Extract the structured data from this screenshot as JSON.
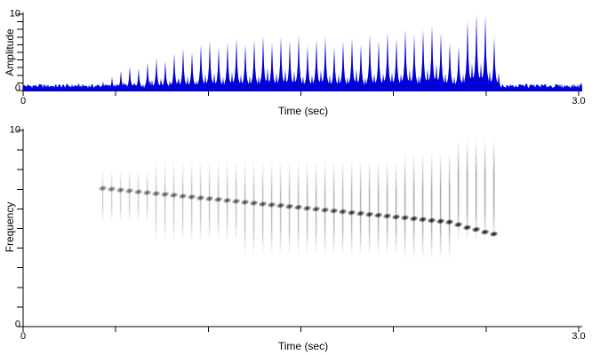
{
  "figure": {
    "background": "#ffffff",
    "axis_color": "#000000",
    "waveform_color": "#0000d8"
  },
  "chart_data": [
    {
      "type": "area",
      "name": "oscillogram",
      "title": "",
      "xlabel": "Time (sec)",
      "ylabel": "Amplitude",
      "xlim": [
        0,
        3.0
      ],
      "ylim": [
        0,
        10
      ],
      "x_tick_interval": 0.5,
      "y_tick_interval": 1,
      "x_tick_labels": {
        "min": "0",
        "max": "3.0"
      },
      "y_tick_labels": {
        "min": "0",
        "max": "10"
      },
      "grid": "off",
      "noise_floor": 0.8,
      "pulse_t": [
        0.43,
        0.478,
        0.526,
        0.574,
        0.622,
        0.67,
        0.718,
        0.766,
        0.814,
        0.862,
        0.91,
        0.958,
        1.006,
        1.054,
        1.102,
        1.15,
        1.198,
        1.246,
        1.294,
        1.342,
        1.39,
        1.438,
        1.486,
        1.534,
        1.582,
        1.63,
        1.678,
        1.726,
        1.774,
        1.822,
        1.87,
        1.918,
        1.966,
        2.014,
        2.062,
        2.11,
        2.158,
        2.206,
        2.254,
        2.302,
        2.35,
        2.398,
        2.446,
        2.494,
        2.542
      ],
      "pulse_amp": [
        1.3,
        1.9,
        2.7,
        3.3,
        3.0,
        3.8,
        4.4,
        4.0,
        5.0,
        5.6,
        5.2,
        6.2,
        6.6,
        5.8,
        6.4,
        7.0,
        6.2,
        6.8,
        7.3,
        6.4,
        7.1,
        6.6,
        7.4,
        6.0,
        6.8,
        7.2,
        5.8,
        6.6,
        7.0,
        6.2,
        7.4,
        6.7,
        7.8,
        7.0,
        8.2,
        7.4,
        8.1,
        8.7,
        7.7,
        6.4,
        5.9,
        9.3,
        10.2,
        10.0,
        7.1
      ]
    },
    {
      "type": "heatmap",
      "name": "spectrogram",
      "title": "",
      "xlabel": "Time (sec)",
      "ylabel": "Frequency",
      "xlim": [
        0,
        3.0
      ],
      "ylim": [
        0,
        10
      ],
      "x_tick_interval": 0.5,
      "y_tick_interval": 1,
      "x_tick_labels": {
        "min": "0",
        "max": "3.0"
      },
      "y_tick_labels": {
        "min": "0",
        "max": "10"
      },
      "grid": "off",
      "pulse_t": [
        0.43,
        0.478,
        0.526,
        0.574,
        0.622,
        0.67,
        0.718,
        0.766,
        0.814,
        0.862,
        0.91,
        0.958,
        1.006,
        1.054,
        1.102,
        1.15,
        1.198,
        1.246,
        1.294,
        1.342,
        1.39,
        1.438,
        1.486,
        1.534,
        1.582,
        1.63,
        1.678,
        1.726,
        1.774,
        1.822,
        1.87,
        1.918,
        1.966,
        2.014,
        2.062,
        2.11,
        2.158,
        2.206,
        2.254,
        2.302,
        2.35,
        2.398,
        2.446,
        2.494,
        2.542
      ],
      "pulse_freq": [
        7.05,
        7.01,
        6.96,
        6.92,
        6.87,
        6.83,
        6.78,
        6.74,
        6.7,
        6.65,
        6.61,
        6.56,
        6.52,
        6.48,
        6.43,
        6.39,
        6.34,
        6.3,
        6.25,
        6.21,
        6.17,
        6.12,
        6.08,
        6.03,
        5.99,
        5.94,
        5.9,
        5.86,
        5.81,
        5.77,
        5.72,
        5.68,
        5.64,
        5.59,
        5.55,
        5.5,
        5.46,
        5.41,
        5.37,
        5.33,
        5.2,
        5.05,
        4.95,
        4.82,
        4.72
      ],
      "pulse_intensity": [
        0.35,
        0.37,
        0.38,
        0.4,
        0.41,
        0.43,
        0.45,
        0.46,
        0.48,
        0.49,
        0.51,
        0.53,
        0.54,
        0.56,
        0.57,
        0.59,
        0.61,
        0.62,
        0.64,
        0.65,
        0.67,
        0.69,
        0.7,
        0.72,
        0.73,
        0.75,
        0.77,
        0.78,
        0.8,
        0.81,
        0.83,
        0.85,
        0.86,
        0.88,
        0.89,
        0.91,
        0.93,
        0.94,
        0.96,
        0.97,
        0.99,
        1.0,
        1.0,
        1.0,
        1.0
      ],
      "streak_top_freq": [
        8.0,
        8.0,
        8.0,
        8.0,
        8.0,
        8.0,
        8.5,
        8.5,
        8.5,
        8.5,
        8.5,
        8.5,
        8.5,
        8.5,
        8.5,
        8.5,
        8.5,
        8.5,
        8.5,
        8.5,
        8.5,
        8.5,
        8.5,
        8.5,
        8.5,
        8.5,
        8.5,
        8.5,
        8.5,
        8.5,
        8.5,
        8.5,
        8.5,
        8.5,
        8.9,
        8.9,
        8.9,
        8.9,
        8.9,
        8.9,
        9.6,
        9.6,
        9.6,
        9.6,
        9.6
      ],
      "streak_bottom_freq": [
        5.3,
        5.3,
        5.3,
        5.3,
        5.3,
        5.3,
        4.3,
        4.3,
        4.3,
        4.3,
        4.3,
        4.3,
        4.3,
        4.3,
        4.3,
        4.3,
        3.6,
        3.6,
        3.6,
        3.6,
        3.6,
        3.6,
        3.6,
        3.6,
        3.6,
        3.6,
        3.6,
        3.6,
        3.6,
        3.6,
        3.6,
        3.6,
        3.6,
        3.6,
        3.4,
        3.4,
        3.4,
        3.4,
        3.4,
        3.4,
        4.3,
        4.3,
        4.3,
        4.3,
        4.3
      ]
    }
  ]
}
